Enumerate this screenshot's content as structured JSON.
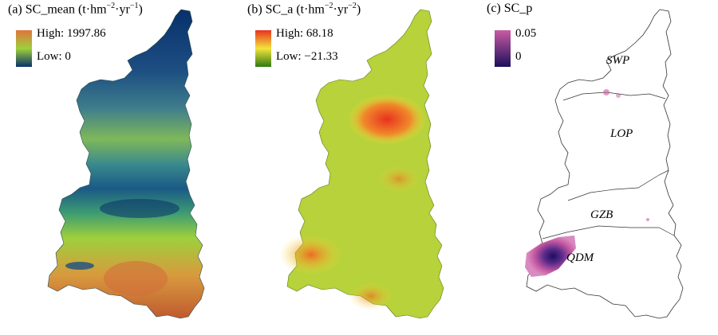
{
  "panels": [
    {
      "id": "a",
      "title_main": "(a) SC_mean (t·hm",
      "title_sup1": "−2",
      "title_mid": "·yr",
      "title_sup2": "−1",
      "title_end": ")",
      "legend_high": "High: 1997.86",
      "legend_low": "Low: 0",
      "colors": {
        "high": "#e0743a",
        "mid": "#9ed03c",
        "low": "#08306b"
      }
    },
    {
      "id": "b",
      "title_main": "(b) SC_a (t·hm",
      "title_sup1": "−2",
      "title_mid": "·yr",
      "title_sup2": "−2",
      "title_end": ")",
      "legend_high": "High: 68.18",
      "legend_low": "Low: −21.33",
      "colors": {
        "high": "#e8321f",
        "mid": "#f3e43c",
        "low": "#2e7a13"
      }
    },
    {
      "id": "c",
      "title_main": "(c) SC_p",
      "legend_high": "0.05",
      "legend_low": "0",
      "colors": {
        "high": "#c95ba3",
        "low": "#1c0f5c"
      }
    }
  ],
  "zones": [
    {
      "label": "SWP"
    },
    {
      "label": "LOP"
    },
    {
      "label": "GZB"
    },
    {
      "label": "QDM"
    }
  ]
}
